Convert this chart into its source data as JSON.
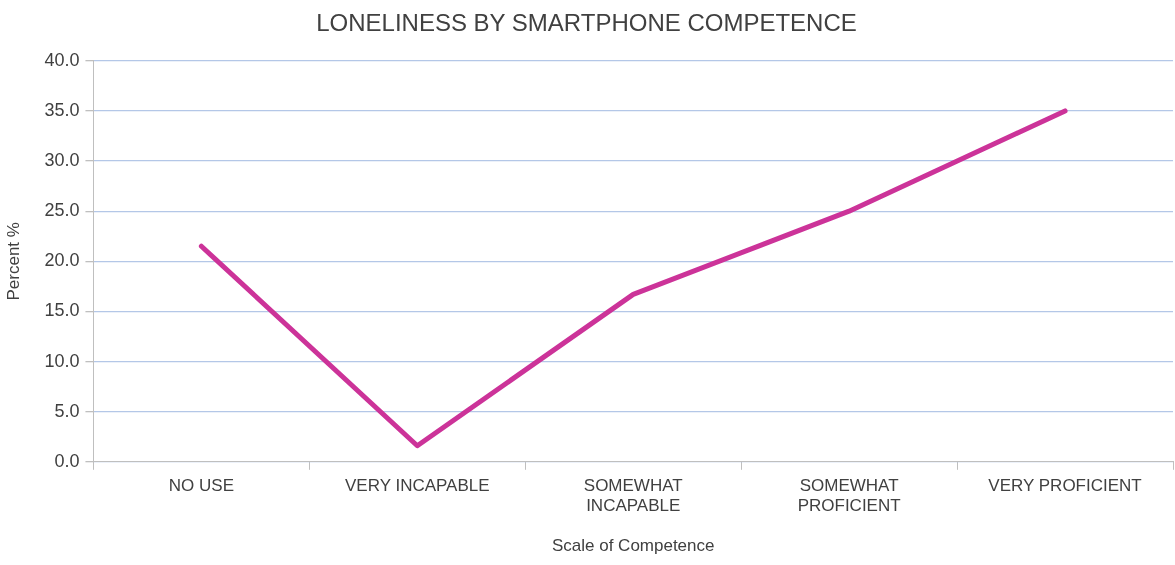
{
  "chart_data": {
    "type": "line",
    "title": "LONELINESS BY SMARTPHONE COMPETENCE",
    "xlabel": "Scale of Competence",
    "ylabel": "Percent %",
    "categories": [
      "NO USE",
      "VERY INCAPABLE",
      "SOMEWHAT INCAPABLE",
      "SOMEWHAT PROFICIENT",
      "VERY PROFICIENT"
    ],
    "values": [
      21.5,
      1.6,
      16.7,
      25.0,
      35.0
    ],
    "color": "#cc3399",
    "ylim": [
      0,
      40
    ],
    "yticks": [
      {
        "value": 0,
        "label": "0.0"
      },
      {
        "value": 5,
        "label": "5.0"
      },
      {
        "value": 10,
        "label": "10.0"
      },
      {
        "value": 15,
        "label": "15.0"
      },
      {
        "value": 20,
        "label": "20.0"
      },
      {
        "value": 25,
        "label": "25.0"
      },
      {
        "value": 30,
        "label": "30.0"
      },
      {
        "value": 35,
        "label": "35.0"
      },
      {
        "value": 40,
        "label": "40.0"
      }
    ],
    "grid": "y",
    "legend": false,
    "marker": "none",
    "line_style": "solid"
  }
}
